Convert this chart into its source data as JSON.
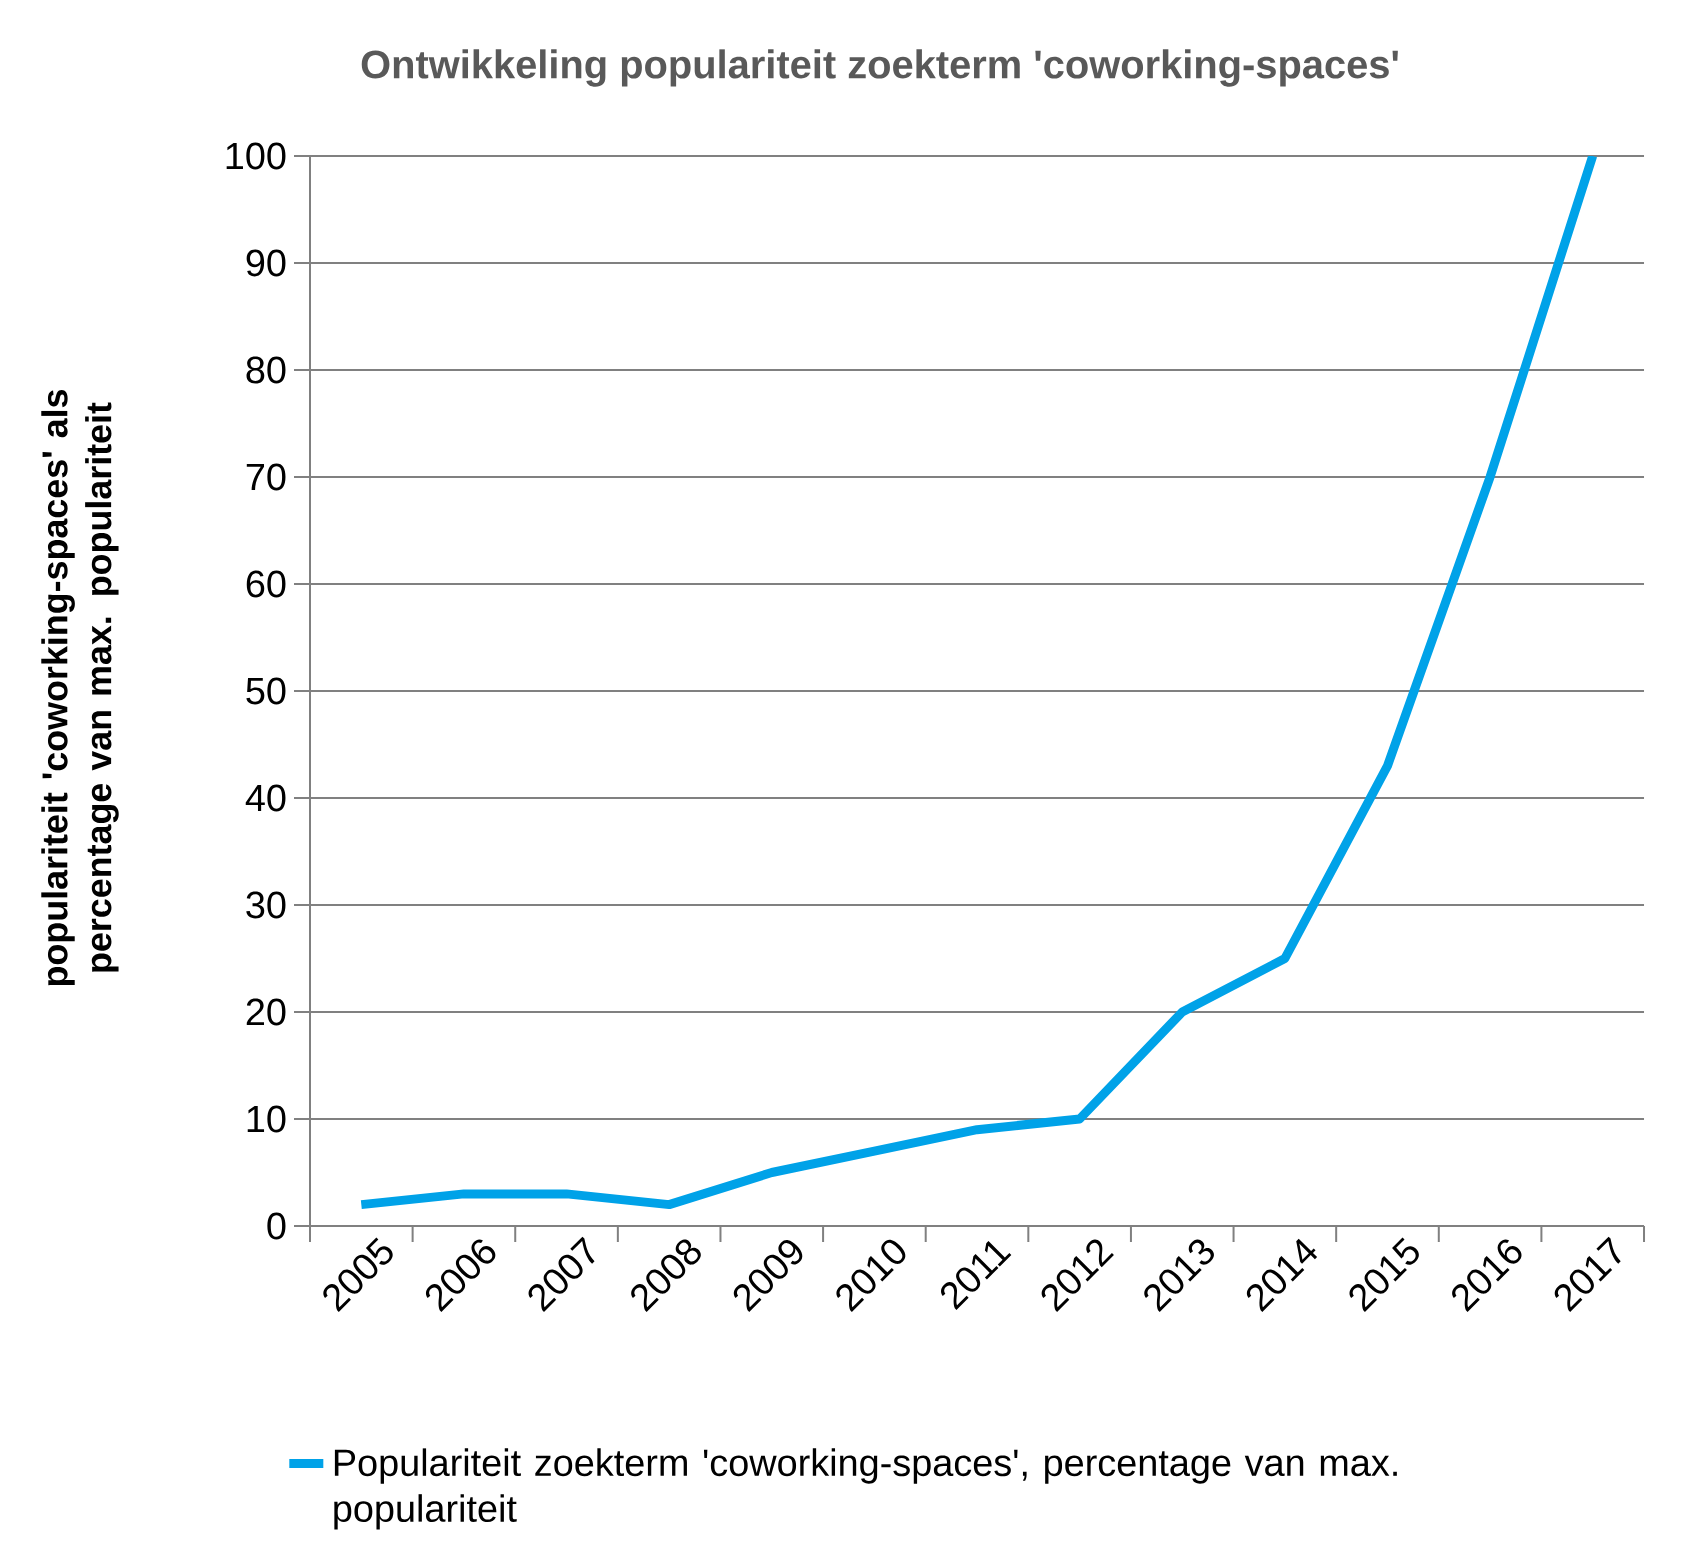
{
  "chart_data": {
    "type": "line",
    "title": "Ontwikkeling populariteit zoekterm 'coworking-spaces'",
    "ylabel": "populariteit 'coworking-spaces' als percentage van max. populariteit",
    "categories": [
      "2005",
      "2006",
      "2007",
      "2008",
      "2009",
      "2010",
      "2011",
      "2012",
      "2013",
      "2014",
      "2015",
      "2016",
      "2017"
    ],
    "series": [
      {
        "name": "Populariteit zoekterm 'coworking-spaces', percentage van max. populariteit",
        "color": "#00a2e8",
        "values": [
          2,
          3,
          3,
          2,
          5,
          7,
          9,
          10,
          20,
          25,
          43,
          70,
          100
        ]
      }
    ],
    "ylim": [
      0,
      100
    ],
    "yticks": [
      0,
      10,
      20,
      30,
      40,
      50,
      60,
      70,
      80,
      90,
      100
    ],
    "grid": "y",
    "legend": "bottom"
  }
}
